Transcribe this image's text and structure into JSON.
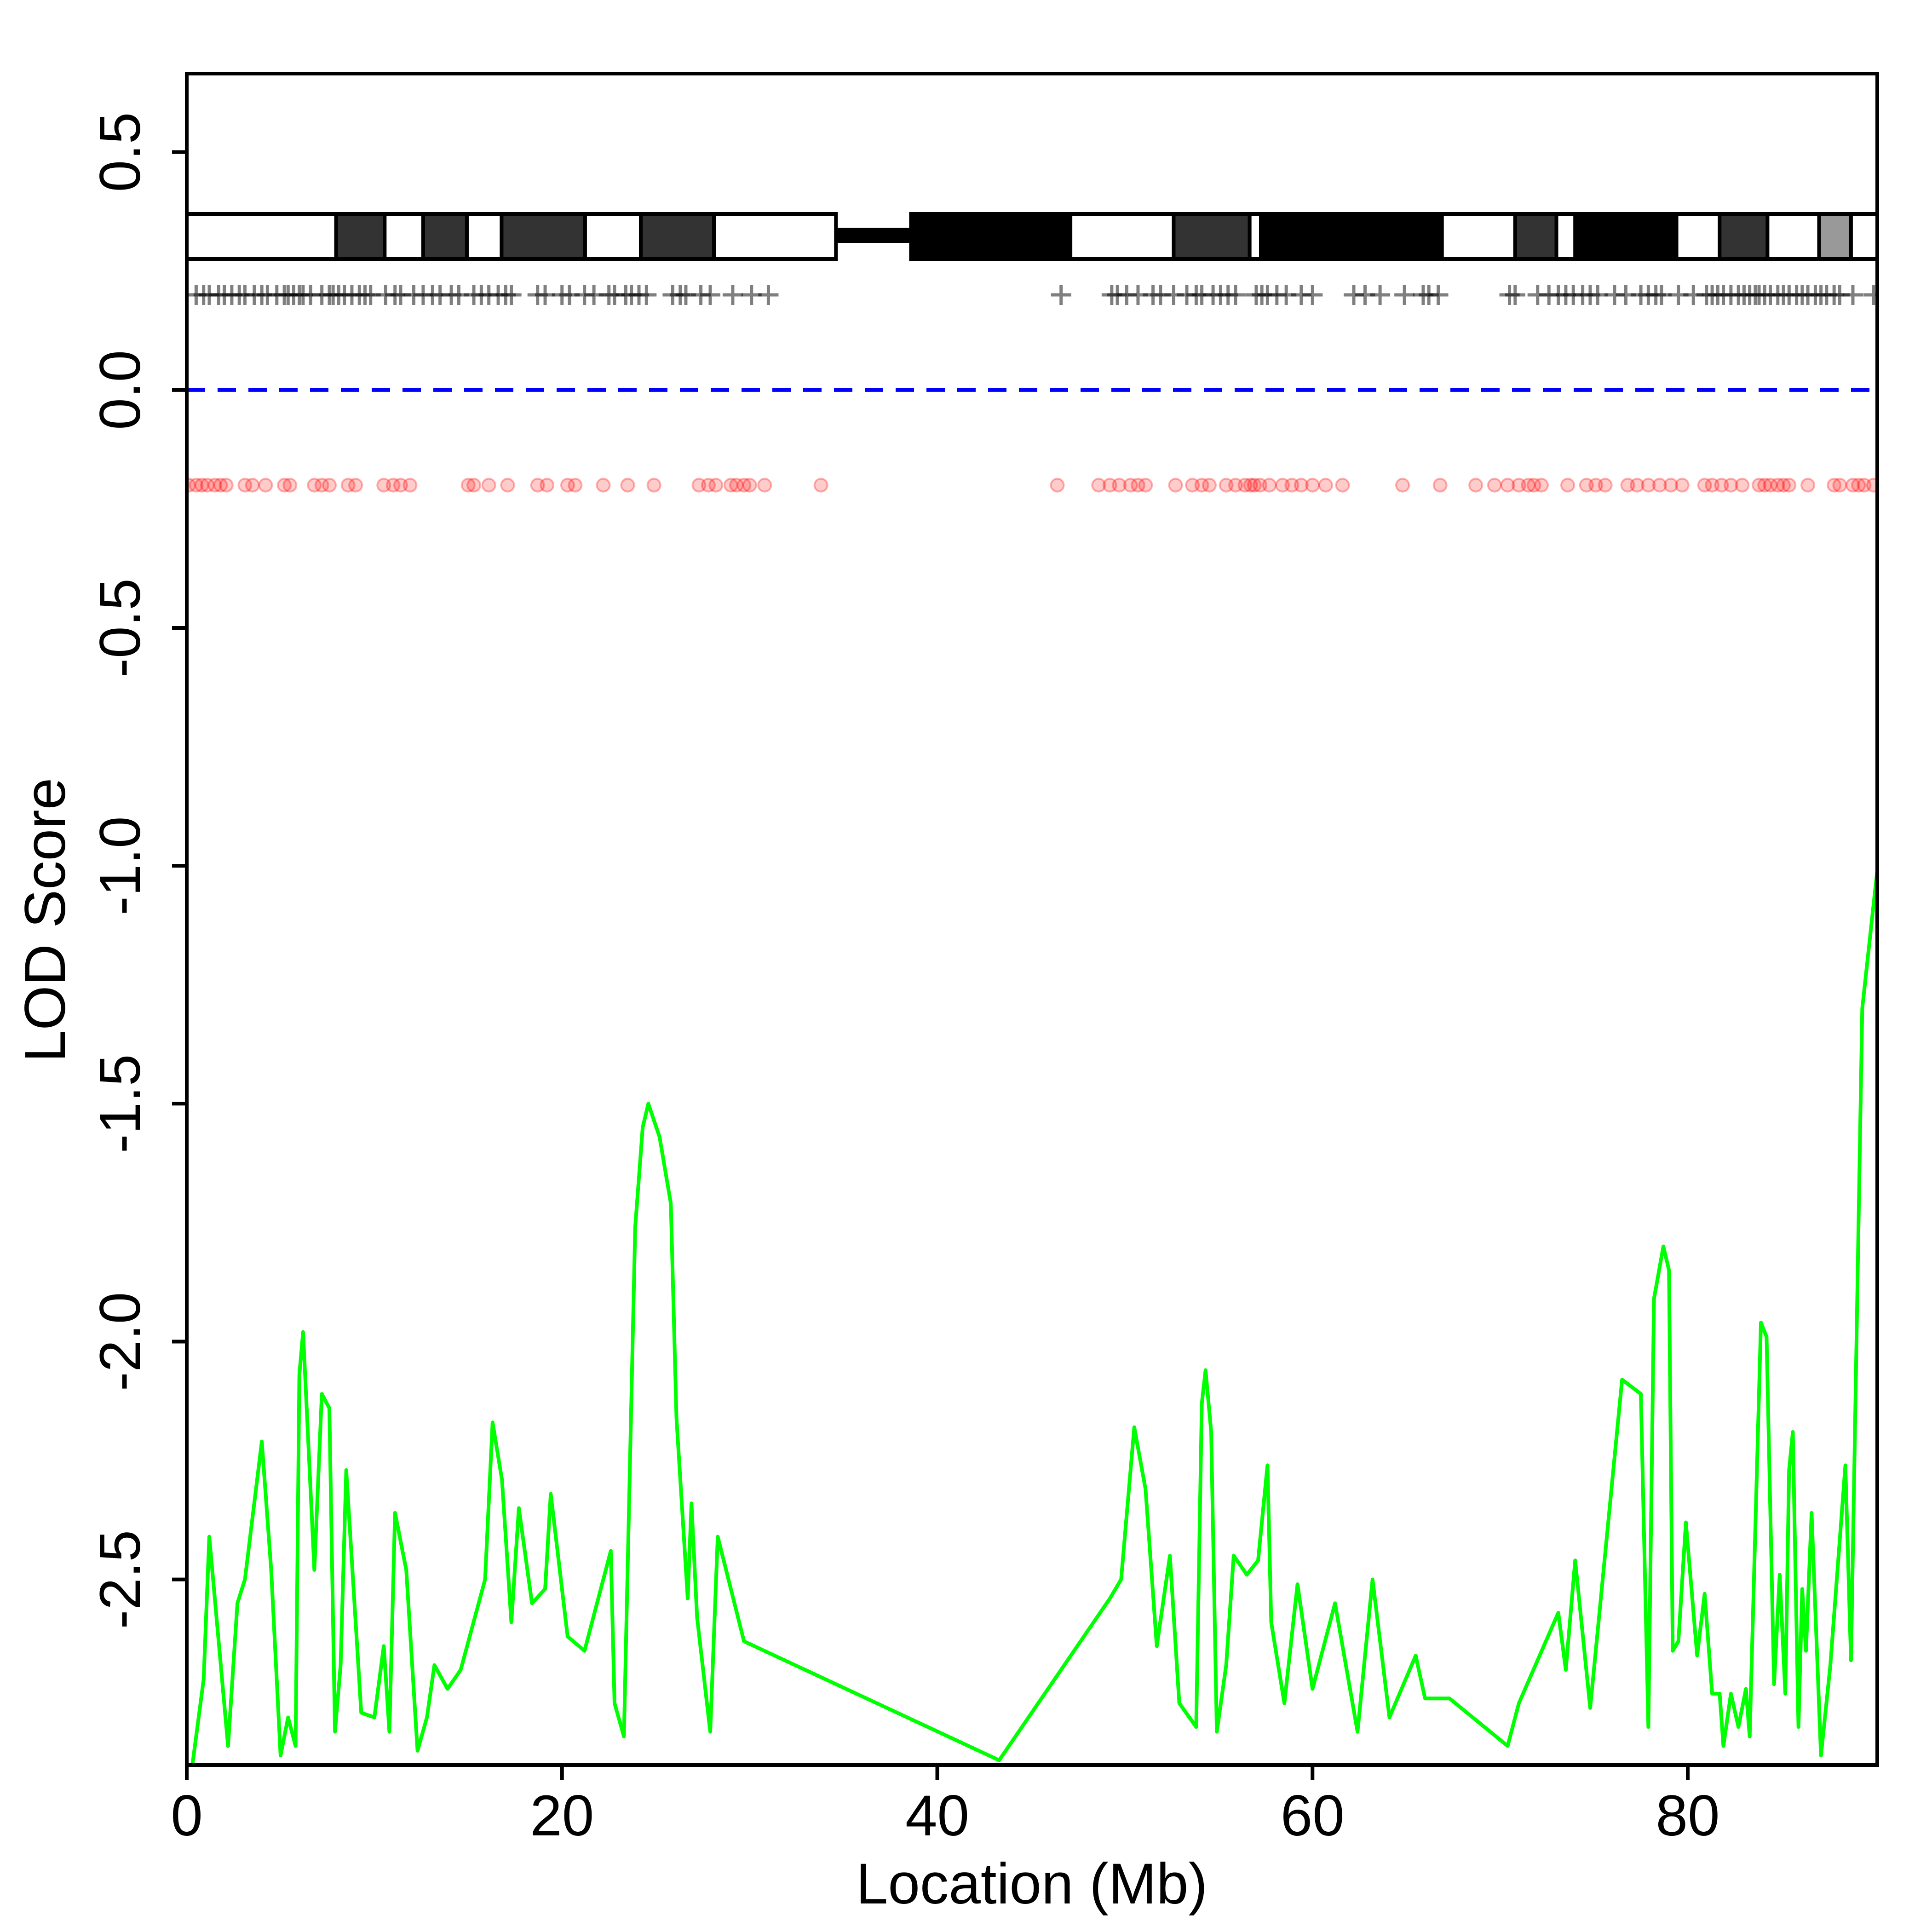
{
  "chart_data": {
    "type": "line",
    "xlabel": "Location (Mb)",
    "ylabel": "LOD Score",
    "xlim": [
      0,
      90.1
    ],
    "ylim": [
      -2.89,
      0.665
    ],
    "xticks": [
      0,
      20,
      40,
      60,
      80
    ],
    "yticks": [
      -2.5,
      {
        "value": -2,
        "label": "-2.0"
      },
      -1.5,
      {
        "value": -1,
        "label": "-1.0"
      },
      -0.5,
      {
        "value": 0,
        "label": "0.0"
      },
      0.5
    ],
    "x": [
      0.3,
      0.9,
      1.2,
      2.2,
      2.7,
      3.1,
      4.0,
      4.5,
      5.0,
      5.4,
      5.8,
      6.0,
      6.2,
      6.8,
      7.2,
      7.6,
      7.9,
      8.2,
      8.5,
      9.3,
      10.0,
      10.5,
      10.8,
      11.1,
      11.7,
      12.3,
      12.8,
      13.2,
      13.9,
      14.6,
      15.9,
      16.3,
      16.8,
      17.3,
      17.7,
      18.4,
      19.1,
      19.4,
      20.3,
      21.2,
      22.6,
      22.8,
      23.3,
      23.9,
      24.3,
      24.6,
      25.2,
      25.8,
      26.1,
      26.7,
      26.9,
      27.2,
      27.9,
      28.3,
      29.7,
      43.3,
      49.2,
      49.8,
      50.5,
      51.1,
      51.7,
      52.4,
      52.9,
      53.8,
      54.1,
      54.3,
      54.6,
      54.9,
      55.4,
      55.8,
      56.5,
      57.1,
      57.6,
      57.8,
      58.5,
      59.2,
      60.0,
      61.2,
      62.4,
      63.2,
      64.1,
      65.5,
      66.0,
      67.3,
      70.4,
      71.0,
      73.1,
      73.5,
      74.0,
      74.8,
      76.5,
      77.5,
      77.9,
      78.2,
      78.7,
      79.0,
      79.2,
      79.5,
      79.9,
      80.5,
      80.9,
      81.3,
      81.7,
      81.9,
      82.3,
      82.7,
      83.1,
      83.3,
      83.9,
      84.2,
      84.6,
      84.9,
      85.2,
      85.4,
      85.6,
      85.9,
      86.1,
      86.3,
      86.6,
      87.1,
      87.6,
      88.4,
      88.7,
      89.3,
      90.1
    ],
    "series": [
      {
        "color": "#00ff00",
        "values": [
          -2.89,
          -2.71,
          -2.41,
          -2.85,
          -2.55,
          -2.5,
          -2.21,
          -2.48,
          -2.87,
          -2.79,
          -2.85,
          -2.07,
          -1.98,
          -2.48,
          -2.11,
          -2.14,
          -2.82,
          -2.68,
          -2.27,
          -2.78,
          -2.79,
          -2.64,
          -2.82,
          -2.36,
          -2.48,
          -2.86,
          -2.79,
          -2.68,
          -2.73,
          -2.69,
          -2.5,
          -2.17,
          -2.29,
          -2.59,
          -2.35,
          -2.55,
          -2.52,
          -2.32,
          -2.62,
          -2.65,
          -2.44,
          -2.76,
          -2.83,
          -1.76,
          -1.55,
          -1.5,
          -1.57,
          -1.71,
          -2.16,
          -2.54,
          -2.34,
          -2.58,
          -2.82,
          -2.41,
          -2.63,
          -2.88,
          -2.54,
          -2.5,
          -2.18,
          -2.31,
          -2.64,
          -2.45,
          -2.76,
          -2.81,
          -2.13,
          -2.06,
          -2.19,
          -2.82,
          -2.68,
          -2.45,
          -2.49,
          -2.46,
          -2.26,
          -2.59,
          -2.76,
          -2.51,
          -2.73,
          -2.55,
          -2.82,
          -2.5,
          -2.79,
          -2.66,
          -2.75,
          -2.75,
          -2.85,
          -2.76,
          -2.57,
          -2.69,
          -2.46,
          -2.77,
          -2.08,
          -2.11,
          -2.81,
          -1.91,
          -1.8,
          -1.85,
          -2.65,
          -2.63,
          -2.38,
          -2.66,
          -2.53,
          -2.74,
          -2.74,
          -2.85,
          -2.74,
          -2.81,
          -2.73,
          -2.83,
          -1.96,
          -1.99,
          -2.72,
          -2.49,
          -2.74,
          -2.27,
          -2.19,
          -2.81,
          -2.52,
          -2.65,
          -2.36,
          -2.87,
          -2.68,
          -2.26,
          -2.67,
          -1.3,
          -1.01
        ]
      }
    ],
    "hline": {
      "value": 0,
      "color": "#0000ff"
    },
    "markers": {
      "y": 0.2,
      "color": "#000000",
      "x": [
        0.5,
        0.9,
        1.2,
        1.7,
        2.0,
        2.4,
        2.8,
        3.1,
        3.6,
        4.0,
        4.3,
        4.8,
        5.2,
        5.4,
        5.7,
        6.0,
        6.2,
        6.6,
        7.2,
        7.6,
        7.8,
        8.1,
        8.4,
        8.8,
        9.2,
        9.5,
        9.8,
        10.6,
        11.1,
        11.4,
        12.1,
        12.6,
        13.1,
        13.5,
        14.1,
        14.5,
        15.3,
        15.7,
        16.1,
        16.6,
        17.0,
        17.3,
        18.7,
        19.1,
        20.0,
        20.4,
        21.2,
        21.7,
        22.5,
        22.8,
        23.4,
        23.7,
        24.1,
        24.5,
        25.9,
        26.3,
        26.6,
        27.4,
        27.9,
        29.1,
        30.1,
        31.0,
        46.6,
        49.3,
        49.6,
        50.1,
        50.7,
        51.5,
        51.9,
        52.6,
        53.3,
        53.8,
        54.1,
        54.7,
        55.1,
        55.5,
        55.9,
        57.0,
        57.3,
        57.6,
        58.1,
        58.6,
        59.4,
        60.0,
        62.2,
        62.8,
        63.6,
        64.9,
        65.9,
        66.2,
        66.7,
        70.5,
        70.8,
        72.0,
        72.6,
        73.1,
        73.5,
        73.9,
        74.4,
        74.8,
        75.2,
        76.1,
        76.7,
        77.5,
        77.9,
        78.3,
        78.6,
        79.5,
        80.3,
        81.0,
        81.3,
        81.6,
        81.9,
        82.3,
        82.7,
        83.0,
        83.3,
        83.6,
        83.8,
        84.1,
        84.4,
        84.8,
        85.1,
        85.4,
        85.8,
        86.1,
        86.4,
        86.8,
        87.1,
        87.4,
        87.8,
        88.1,
        88.8,
        89.9
      ]
    },
    "snps": {
      "y": -0.2,
      "color": "#ff0000",
      "x": [
        0.1,
        0.5,
        0.8,
        1.1,
        1.5,
        1.8,
        2.1,
        3.1,
        3.5,
        4.2,
        5.2,
        5.5,
        6.8,
        7.2,
        7.6,
        8.6,
        9.0,
        10.5,
        11.0,
        11.4,
        11.9,
        15.0,
        15.3,
        16.1,
        17.1,
        18.7,
        19.2,
        20.3,
        20.7,
        22.2,
        23.5,
        24.9,
        27.3,
        27.8,
        28.2,
        29.0,
        29.3,
        29.7,
        30.0,
        30.8,
        33.8,
        46.4,
        48.6,
        49.2,
        49.7,
        50.3,
        50.7,
        51.1,
        52.7,
        53.6,
        54.1,
        54.5,
        55.4,
        55.9,
        56.4,
        56.7,
        56.9,
        57.2,
        57.7,
        58.4,
        58.9,
        59.4,
        60.0,
        60.7,
        61.6,
        64.8,
        66.8,
        68.7,
        69.7,
        70.4,
        71.0,
        71.5,
        71.8,
        72.2,
        73.6,
        74.6,
        75.1,
        75.6,
        76.8,
        77.3,
        77.9,
        78.5,
        79.1,
        79.7,
        80.9,
        81.3,
        81.8,
        82.3,
        82.9,
        83.8,
        84.1,
        84.4,
        84.8,
        85.1,
        85.4,
        86.4,
        87.8,
        88.1,
        88.8,
        89.1,
        89.4,
        89.9
      ]
    },
    "ideogram": {
      "centromere": [
        34.6,
        38.6
      ],
      "bands": [
        {
          "start": 0,
          "end": 7.96,
          "color": "#ffffff"
        },
        {
          "start": 7.96,
          "end": 10.55,
          "color": "#333333"
        },
        {
          "start": 10.55,
          "end": 12.6,
          "color": "#ffffff"
        },
        {
          "start": 12.6,
          "end": 14.93,
          "color": "#333333"
        },
        {
          "start": 14.93,
          "end": 16.78,
          "color": "#ffffff"
        },
        {
          "start": 16.78,
          "end": 21.23,
          "color": "#333333"
        },
        {
          "start": 21.23,
          "end": 24.2,
          "color": "#ffffff"
        },
        {
          "start": 24.2,
          "end": 28.1,
          "color": "#333333"
        },
        {
          "start": 28.1,
          "end": 34.6,
          "color": "#ffffff"
        },
        {
          "start": 38.6,
          "end": 47.1,
          "color": "#000000"
        },
        {
          "start": 47.1,
          "end": 52.6,
          "color": "#ffffff"
        },
        {
          "start": 52.6,
          "end": 56.65,
          "color": "#333333"
        },
        {
          "start": 56.65,
          "end": 57.25,
          "color": "#ffffff"
        },
        {
          "start": 57.25,
          "end": 66.9,
          "color": "#000000"
        },
        {
          "start": 66.9,
          "end": 70.8,
          "color": "#ffffff"
        },
        {
          "start": 70.8,
          "end": 73,
          "color": "#333333"
        },
        {
          "start": 73,
          "end": 74,
          "color": "#ffffff"
        },
        {
          "start": 74,
          "end": 79.4,
          "color": "#000000"
        },
        {
          "start": 79.4,
          "end": 81.7,
          "color": "#ffffff"
        },
        {
          "start": 81.7,
          "end": 84.25,
          "color": "#333333"
        },
        {
          "start": 84.25,
          "end": 87,
          "color": "#ffffff"
        },
        {
          "start": 87,
          "end": 88.7,
          "color": "#999999"
        },
        {
          "start": 88.7,
          "end": 90.1,
          "color": "#ffffff"
        }
      ]
    }
  }
}
